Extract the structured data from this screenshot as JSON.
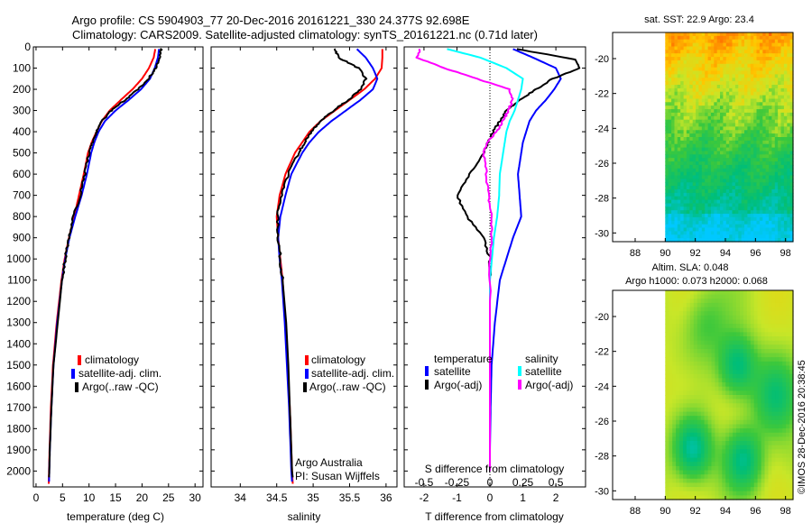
{
  "header": {
    "line1": "Argo profile: CS 5904903_77 20-Dec-2016 20161221_330 24.377S 92.698E",
    "line2": "Climatology: CARS2009. Satellite-adjusted climatology: synTS_20161221.nc (0.71d later)"
  },
  "colors": {
    "climatology": "#ff0000",
    "satellite": "#0000ff",
    "argo": "#000000",
    "satellite_s": "#00ffff",
    "argo_s": "#ff00ff"
  },
  "chart_data": [
    {
      "type": "line",
      "id": "temperature",
      "xlabel": "temperature (deg C)",
      "xlim": [
        -0.5,
        31.5
      ],
      "ylim": [
        2075,
        0
      ],
      "xticks": [
        "0",
        "5",
        "10",
        "15",
        "20",
        "25",
        "30"
      ],
      "yticks": [
        "0",
        "100",
        "200",
        "300",
        "400",
        "500",
        "600",
        "700",
        "800",
        "900",
        "1000",
        "1100",
        "1200",
        "1300",
        "1400",
        "1500",
        "1600",
        "1700",
        "1800",
        "1900",
        "2000"
      ],
      "legend": [
        "climatology",
        "satellite-adj. clim.",
        "Argo(..raw -QC)"
      ],
      "series": [
        {
          "name": "climatology",
          "color": "#ff0000",
          "x": [
            22.5,
            22.2,
            21.3,
            20.0,
            18.2,
            16.0,
            13.9,
            12.4,
            11.4,
            10.5,
            9.8,
            9.0,
            8.1,
            7.2,
            6.2,
            5.4,
            4.8,
            3.9,
            3.2,
            2.8,
            2.55,
            2.45,
            2.4
          ],
          "y": [
            10,
            50,
            100,
            150,
            200,
            250,
            300,
            350,
            400,
            450,
            500,
            600,
            700,
            800,
            900,
            1000,
            1100,
            1300,
            1500,
            1700,
            1900,
            2000,
            2060
          ]
        },
        {
          "name": "satellite-adj. clim.",
          "color": "#0000ff",
          "x": [
            23.2,
            23.0,
            22.4,
            21.5,
            19.8,
            17.5,
            15.0,
            13.0,
            11.8,
            11.0,
            10.4,
            9.6,
            8.6,
            7.4,
            6.3,
            5.5,
            4.9,
            4.0,
            3.3,
            2.9,
            2.6,
            2.5,
            2.45
          ],
          "y": [
            10,
            50,
            100,
            150,
            200,
            250,
            300,
            350,
            400,
            450,
            500,
            600,
            700,
            800,
            900,
            1000,
            1100,
            1300,
            1500,
            1700,
            1900,
            2000,
            2050
          ]
        },
        {
          "name": "Argo(..raw -QC)",
          "color": "#000000",
          "x": [
            23.6,
            23.3,
            22.6,
            21.2,
            19.2,
            16.8,
            14.2,
            12.4,
            11.4,
            10.6,
            10.0,
            9.2,
            8.3,
            7.1,
            6.2,
            5.5,
            4.9,
            4.1,
            3.3,
            2.9,
            2.6,
            2.5,
            2.45
          ],
          "y": [
            8,
            50,
            100,
            150,
            200,
            250,
            300,
            350,
            400,
            450,
            500,
            600,
            700,
            800,
            900,
            1000,
            1100,
            1300,
            1500,
            1700,
            1900,
            2000,
            2030
          ]
        }
      ]
    },
    {
      "type": "line",
      "id": "salinity",
      "xlabel": "salinity",
      "xlim": [
        33.6,
        36.15
      ],
      "ylim": [
        2075,
        0
      ],
      "xticks": [
        "34",
        "34.5",
        "35",
        "35.5",
        "36"
      ],
      "legend": [
        "climatology",
        "satellite-adj. clim.",
        "Argo(..raw -QC)"
      ],
      "annotation": [
        "Argo Australia",
        "PI: Susan Wijffels"
      ],
      "series": [
        {
          "name": "climatology",
          "color": "#ff0000",
          "x": [
            35.95,
            35.95,
            35.94,
            35.85,
            35.7,
            35.5,
            35.3,
            35.1,
            34.95,
            34.85,
            34.75,
            34.62,
            34.54,
            34.5,
            34.52,
            34.55,
            34.58,
            34.62,
            34.65,
            34.68,
            34.7,
            34.71,
            34.72
          ],
          "y": [
            10,
            50,
            100,
            150,
            200,
            250,
            300,
            350,
            400,
            450,
            500,
            600,
            700,
            800,
            900,
            1000,
            1100,
            1300,
            1500,
            1700,
            1900,
            2000,
            2060
          ]
        },
        {
          "name": "satellite-adj. clim.",
          "color": "#0000ff",
          "x": [
            35.6,
            35.72,
            35.82,
            35.88,
            35.82,
            35.65,
            35.45,
            35.25,
            35.08,
            34.95,
            34.85,
            34.7,
            34.62,
            34.55,
            34.52,
            34.54,
            34.57,
            34.61,
            34.64,
            34.67,
            34.69,
            34.7,
            34.71
          ],
          "y": [
            10,
            50,
            100,
            150,
            200,
            250,
            300,
            350,
            400,
            450,
            500,
            600,
            700,
            800,
            900,
            1000,
            1100,
            1300,
            1500,
            1700,
            1900,
            2000,
            2050
          ]
        },
        {
          "name": "Argo(..raw -QC)",
          "color": "#000000",
          "x": [
            35.3,
            35.35,
            35.62,
            35.72,
            35.65,
            35.48,
            35.28,
            35.1,
            34.98,
            34.88,
            34.8,
            34.66,
            34.56,
            34.51,
            34.52,
            34.55,
            34.58,
            34.63,
            34.66,
            34.68,
            34.7,
            34.71,
            34.72
          ],
          "y": [
            8,
            50,
            100,
            150,
            200,
            250,
            300,
            350,
            400,
            450,
            500,
            600,
            700,
            800,
            900,
            1000,
            1100,
            1300,
            1500,
            1700,
            1900,
            2000,
            2030
          ]
        }
      ]
    },
    {
      "type": "line",
      "id": "difference",
      "xlabel": "T difference from climatology",
      "xlabel_top": "S difference from climatology",
      "xlim": [
        -2.6,
        2.9
      ],
      "ylim": [
        2075,
        0
      ],
      "xticks": [
        "-2",
        "-1",
        "0",
        "1",
        "2"
      ],
      "xticks_s": [
        "-0.5",
        "-0.25",
        "0",
        "0.25",
        "0.5"
      ],
      "legend_titles": [
        "temperature",
        "salinity"
      ],
      "legend": [
        "satellite",
        "Argo(-adj)",
        "satellite",
        "Argo(-adj)"
      ],
      "series": [
        {
          "name": "satellite",
          "color": "#0000ff",
          "x": [
            0.7,
            1.3,
            2.0,
            2.15,
            1.95,
            1.7,
            1.4,
            1.2,
            1.1,
            1.0,
            0.95,
            0.85,
            0.9,
            0.95,
            0.7,
            0.5,
            0.3,
            0.15,
            0.05,
            0.02,
            0.0,
            0.0
          ],
          "y": [
            10,
            50,
            100,
            150,
            200,
            250,
            300,
            350,
            400,
            450,
            500,
            600,
            700,
            800,
            900,
            1000,
            1100,
            1300,
            1500,
            1700,
            1900,
            2000
          ]
        },
        {
          "name": "Argo(-adj)",
          "color": "#000000",
          "x": [
            0.8,
            2.6,
            2.7,
            1.9,
            1.4,
            0.9,
            0.5,
            0.3,
            0.1,
            -0.05,
            -0.2,
            -0.6,
            -1.0,
            -0.7,
            -0.2,
            0.0,
            0.0,
            0.0,
            0.0,
            0.0,
            0.0
          ],
          "y": [
            10,
            60,
            100,
            150,
            200,
            250,
            300,
            350,
            400,
            450,
            500,
            600,
            700,
            800,
            900,
            1000,
            1100,
            1300,
            1500,
            1700,
            2000
          ]
        },
        {
          "name": "satellite",
          "color": "#00ffff",
          "x": [
            -1.3,
            -0.3,
            0.5,
            1.0,
            0.95,
            0.85,
            0.75,
            0.6,
            0.5,
            0.45,
            0.4,
            0.3,
            0.28,
            0.22,
            0.12,
            0.06,
            0.0,
            0.0,
            0.0,
            0.0,
            0.0
          ],
          "y": [
            10,
            50,
            100,
            150,
            200,
            250,
            300,
            350,
            400,
            450,
            500,
            600,
            700,
            800,
            900,
            1000,
            1100,
            1300,
            1500,
            1700,
            2000
          ]
        },
        {
          "name": "Argo(-adj)",
          "color": "#ff00ff",
          "x": [
            -2.1,
            -2.2,
            -1.4,
            -0.4,
            0.6,
            0.7,
            0.55,
            0.4,
            0.2,
            -0.1,
            -0.2,
            -0.1,
            -0.05,
            0.05,
            0.05,
            0.0,
            0.0,
            0.0,
            0.0,
            0.0
          ],
          "y": [
            10,
            50,
            100,
            150,
            200,
            250,
            300,
            350,
            400,
            450,
            500,
            600,
            700,
            800,
            900,
            1000,
            1200,
            1500,
            1800,
            2000
          ]
        }
      ]
    },
    {
      "type": "heatmap",
      "id": "sst_map",
      "title": "sat. SST: 22.9  Argo: 23.4",
      "xlim": [
        86.5,
        98.5
      ],
      "ylim": [
        -30.5,
        -18.5
      ],
      "xticks": [
        "88",
        "90",
        "92",
        "94",
        "96",
        "98"
      ],
      "yticks": [
        "-20",
        "-22",
        "-24",
        "-26",
        "-28",
        "-30"
      ],
      "data_xrange": [
        90,
        98.5
      ]
    },
    {
      "type": "heatmap",
      "id": "sla_map",
      "title": [
        "Altim. SLA: 0.048",
        "Argo h1000: 0.073  h2000: 0.068"
      ],
      "xlim": [
        86.5,
        98.5
      ],
      "ylim": [
        -30.5,
        -18.5
      ],
      "xticks": [
        "88",
        "90",
        "92",
        "94",
        "96",
        "98"
      ],
      "yticks": [
        "-20",
        "-22",
        "-24",
        "-26",
        "-28",
        "-30"
      ],
      "data_xrange": [
        90,
        98.5
      ]
    }
  ],
  "credit": "©IMOS 28-Dec-2016 20:38:45"
}
